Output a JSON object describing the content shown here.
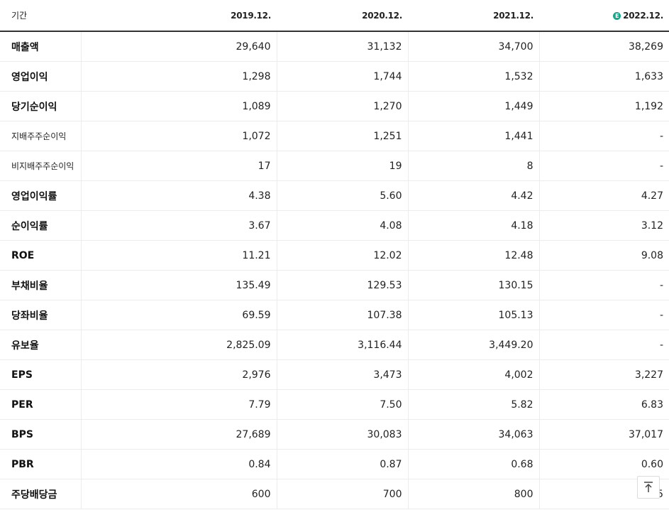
{
  "header": {
    "period_label": "기간",
    "columns": [
      "2019.12.",
      "2020.12.",
      "2021.12.",
      "2022.12."
    ],
    "estimate_badge": "E"
  },
  "rows": [
    {
      "label": "매출액",
      "values": [
        "29,640",
        "31,132",
        "34,700",
        "38,269"
      ]
    },
    {
      "label": "영업이익",
      "values": [
        "1,298",
        "1,744",
        "1,532",
        "1,633"
      ]
    },
    {
      "label": "당기순이익",
      "values": [
        "1,089",
        "1,270",
        "1,449",
        "1,192"
      ]
    },
    {
      "label": "지배주주순이익",
      "values": [
        "1,072",
        "1,251",
        "1,441",
        "-"
      ]
    },
    {
      "label": "비지배주주순이익",
      "values": [
        "17",
        "19",
        "8",
        "-"
      ]
    },
    {
      "label": "영업이익률",
      "values": [
        "4.38",
        "5.60",
        "4.42",
        "4.27"
      ]
    },
    {
      "label": "순이익률",
      "values": [
        "3.67",
        "4.08",
        "4.18",
        "3.12"
      ]
    },
    {
      "label": "ROE",
      "values": [
        "11.21",
        "12.02",
        "12.48",
        "9.08"
      ]
    },
    {
      "label": "부채비율",
      "values": [
        "135.49",
        "129.53",
        "130.15",
        "-"
      ]
    },
    {
      "label": "당좌비율",
      "values": [
        "69.59",
        "107.38",
        "105.13",
        "-"
      ]
    },
    {
      "label": "유보율",
      "values": [
        "2,825.09",
        "3,116.44",
        "3,449.20",
        "-"
      ]
    },
    {
      "label": "EPS",
      "values": [
        "2,976",
        "3,473",
        "4,002",
        "3,227"
      ]
    },
    {
      "label": "PER",
      "values": [
        "7.79",
        "7.50",
        "5.82",
        "6.83"
      ]
    },
    {
      "label": "BPS",
      "values": [
        "27,689",
        "30,083",
        "34,063",
        "37,017"
      ]
    },
    {
      "label": "PBR",
      "values": [
        "0.84",
        "0.87",
        "0.68",
        "0.60"
      ]
    },
    {
      "label": "주당배당금",
      "values": [
        "600",
        "700",
        "800",
        "5"
      ]
    }
  ],
  "scroll_top_icon": "arrow-up-to-top-icon"
}
